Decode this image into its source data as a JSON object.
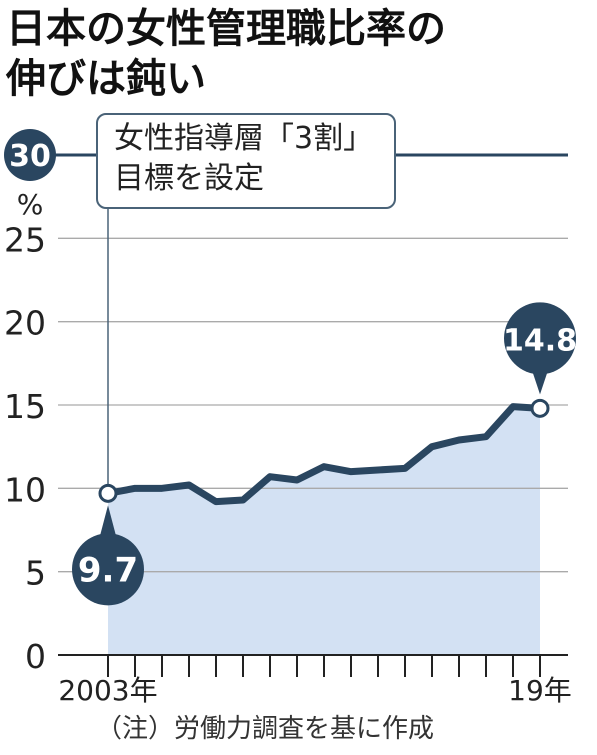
{
  "header": {
    "title_line1": "日本の女性管理職比率の",
    "title_line2": "伸びは鈍い"
  },
  "annotation": {
    "line1": "女性指導層「3割」",
    "line2": "目標を設定"
  },
  "source_note": "（注）労働力調査を基に作成",
  "colors": {
    "line": "#2a4660",
    "area": "#d3e1f3",
    "target_line": "#2a4660",
    "grid": "#aaaaaa",
    "bubble": "#2a4660"
  },
  "chart_data": {
    "type": "area",
    "x": [
      2003,
      2004,
      2005,
      2006,
      2007,
      2008,
      2009,
      2010,
      2011,
      2012,
      2013,
      2014,
      2015,
      2016,
      2017,
      2018,
      2019
    ],
    "values": [
      9.7,
      10.0,
      10.0,
      10.2,
      9.2,
      9.3,
      10.7,
      10.5,
      11.3,
      11.0,
      11.1,
      11.2,
      12.5,
      12.9,
      13.1,
      14.9,
      14.8
    ],
    "ylim": [
      0,
      30
    ],
    "yticks": [
      "0",
      "5",
      "10",
      "15",
      "20",
      "25"
    ],
    "ytick_values": [
      0,
      5,
      10,
      15,
      20,
      25
    ],
    "target_value": 30,
    "target_label": "30",
    "unit": "%",
    "xtick_labels": [
      {
        "year": 2003,
        "label": "2003年"
      },
      {
        "year": 2019,
        "label": "19年"
      }
    ],
    "callouts": [
      {
        "year": 2003,
        "value": 9.7,
        "label": "9.7"
      },
      {
        "year": 2019,
        "value": 14.8,
        "label": "14.8"
      }
    ],
    "grid": true
  }
}
